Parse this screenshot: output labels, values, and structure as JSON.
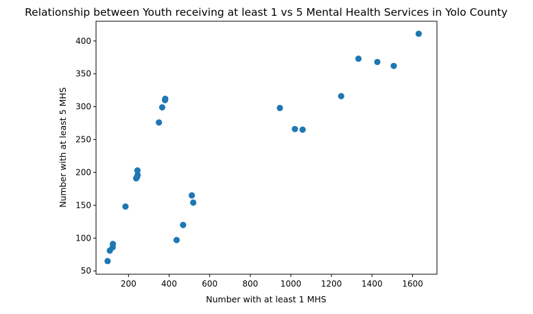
{
  "chart_data": {
    "type": "scatter",
    "title": "Relationship between Youth receiving at least 1 vs 5 Mental Health Services in Yolo County",
    "xlabel": "Number with at least 1 MHS",
    "ylabel": "Number with at least 5 MHS",
    "xlim": [
      40,
      1720
    ],
    "ylim": [
      45,
      430
    ],
    "xticks": [
      200,
      400,
      600,
      800,
      1000,
      1200,
      1400,
      1600
    ],
    "yticks": [
      50,
      100,
      150,
      200,
      250,
      300,
      350,
      400
    ],
    "grid": false,
    "marker_color": "#1f77b4",
    "points": [
      {
        "x": 97,
        "y": 65
      },
      {
        "x": 108,
        "y": 81
      },
      {
        "x": 122,
        "y": 86
      },
      {
        "x": 123,
        "y": 91
      },
      {
        "x": 185,
        "y": 148
      },
      {
        "x": 238,
        "y": 191
      },
      {
        "x": 242,
        "y": 193
      },
      {
        "x": 245,
        "y": 196
      },
      {
        "x": 244,
        "y": 203
      },
      {
        "x": 350,
        "y": 276
      },
      {
        "x": 366,
        "y": 299
      },
      {
        "x": 380,
        "y": 310
      },
      {
        "x": 381,
        "y": 312
      },
      {
        "x": 437,
        "y": 97
      },
      {
        "x": 469,
        "y": 120
      },
      {
        "x": 512,
        "y": 165
      },
      {
        "x": 519,
        "y": 154
      },
      {
        "x": 946,
        "y": 298
      },
      {
        "x": 1020,
        "y": 266
      },
      {
        "x": 1058,
        "y": 265
      },
      {
        "x": 1248,
        "y": 316
      },
      {
        "x": 1333,
        "y": 373
      },
      {
        "x": 1426,
        "y": 368
      },
      {
        "x": 1507,
        "y": 362
      },
      {
        "x": 1630,
        "y": 411
      }
    ]
  }
}
